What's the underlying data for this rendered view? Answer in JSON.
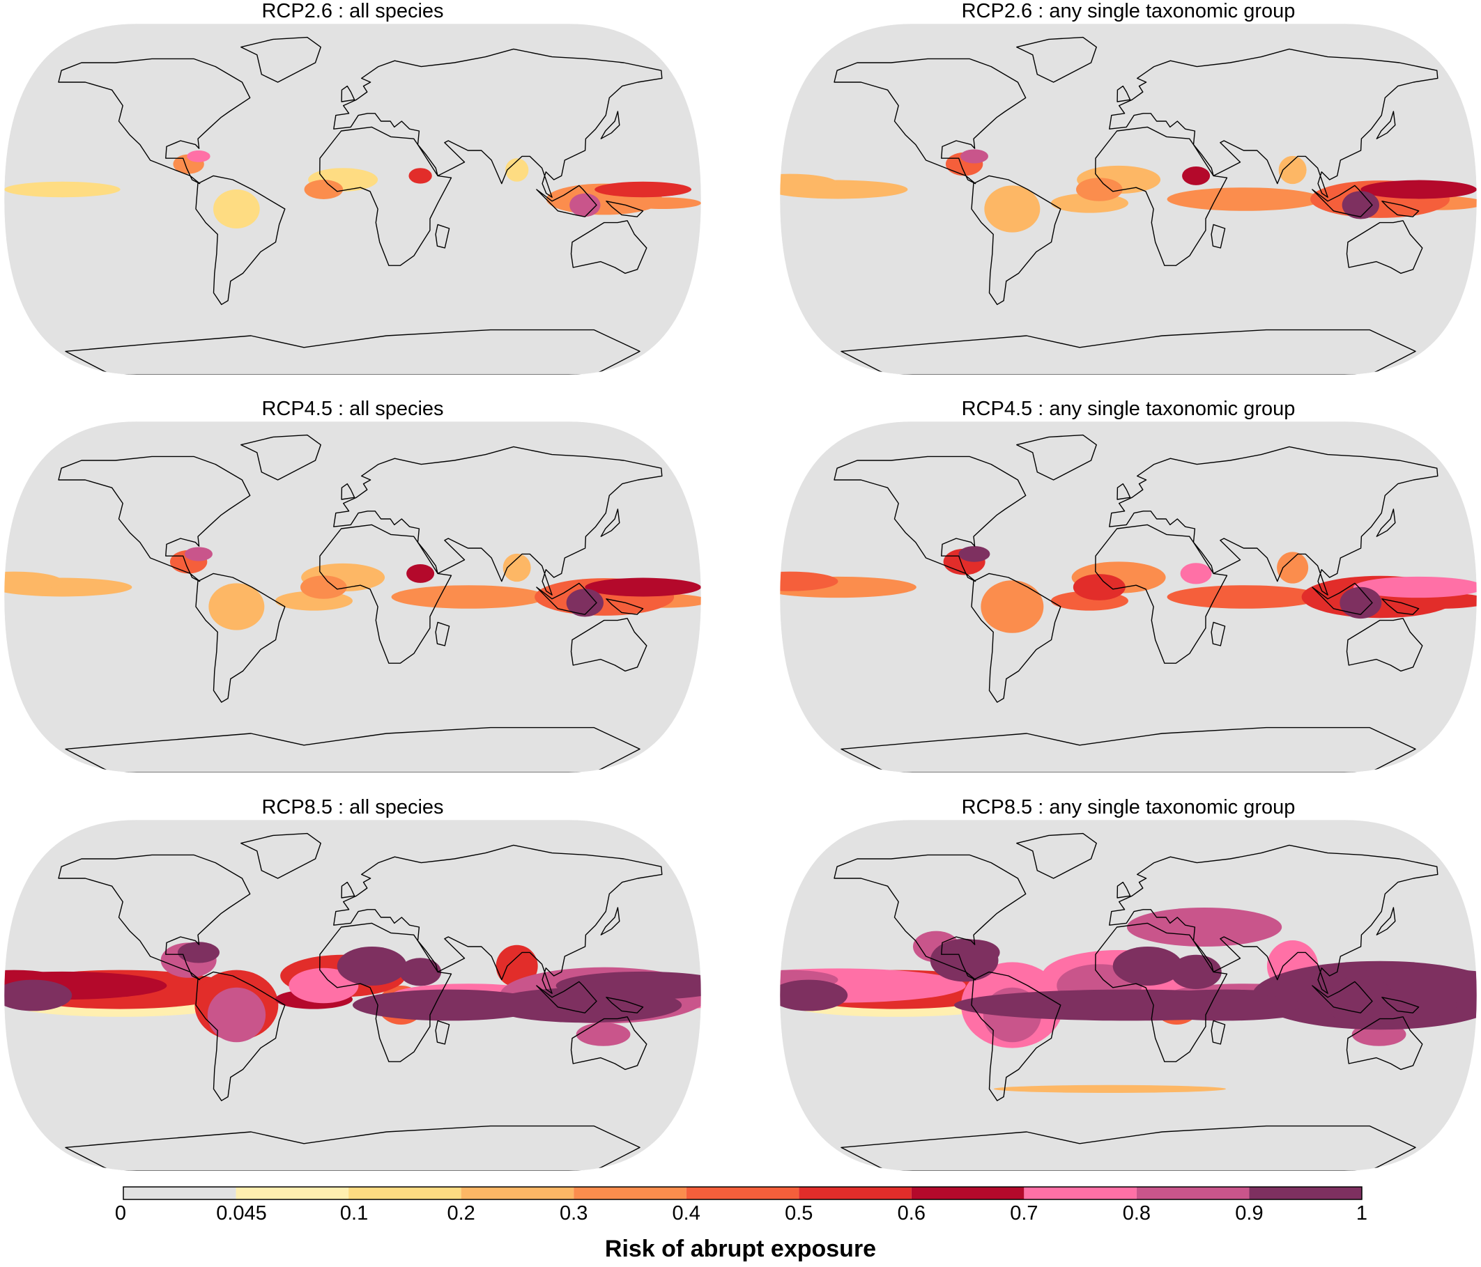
{
  "panels": [
    {
      "title": "RCP2.6 : all species",
      "scenario": "RCP2.6",
      "level": 1
    },
    {
      "title": "RCP2.6 : any single taxonomic group",
      "scenario": "RCP2.6",
      "level": 2
    },
    {
      "title": "RCP4.5 : all species",
      "scenario": "RCP4.5",
      "level": 2
    },
    {
      "title": "RCP4.5 : any single taxonomic group",
      "scenario": "RCP4.5",
      "level": 3
    },
    {
      "title": "RCP8.5 : all species",
      "scenario": "RCP8.5",
      "level": 4
    },
    {
      "title": "RCP8.5 : any single taxonomic group",
      "scenario": "RCP8.5",
      "level": 5
    }
  ],
  "legend": {
    "title": "Risk of abrupt exposure",
    "ticks": [
      "0",
      "0.045",
      "0.1",
      "0.2",
      "0.3",
      "0.4",
      "0.5",
      "0.6",
      "0.7",
      "0.8",
      "0.9",
      "1"
    ],
    "bins": [
      {
        "from": 0,
        "to": 0.045,
        "color": "#e2e2e2"
      },
      {
        "from": 0.045,
        "to": 0.1,
        "color": "#ffefb0"
      },
      {
        "from": 0.1,
        "to": 0.2,
        "color": "#fedc82"
      },
      {
        "from": 0.2,
        "to": 0.3,
        "color": "#fdb765"
      },
      {
        "from": 0.3,
        "to": 0.4,
        "color": "#fb8d4d"
      },
      {
        "from": 0.4,
        "to": 0.5,
        "color": "#f55f3b"
      },
      {
        "from": 0.5,
        "to": 0.6,
        "color": "#e22d2a"
      },
      {
        "from": 0.6,
        "to": 0.7,
        "color": "#b4092b"
      },
      {
        "from": 0.7,
        "to": 0.8,
        "color": "#ff70a6"
      },
      {
        "from": 0.8,
        "to": 0.9,
        "color": "#c9558b"
      },
      {
        "from": 0.9,
        "to": 1,
        "color": "#7e3060"
      }
    ]
  }
}
